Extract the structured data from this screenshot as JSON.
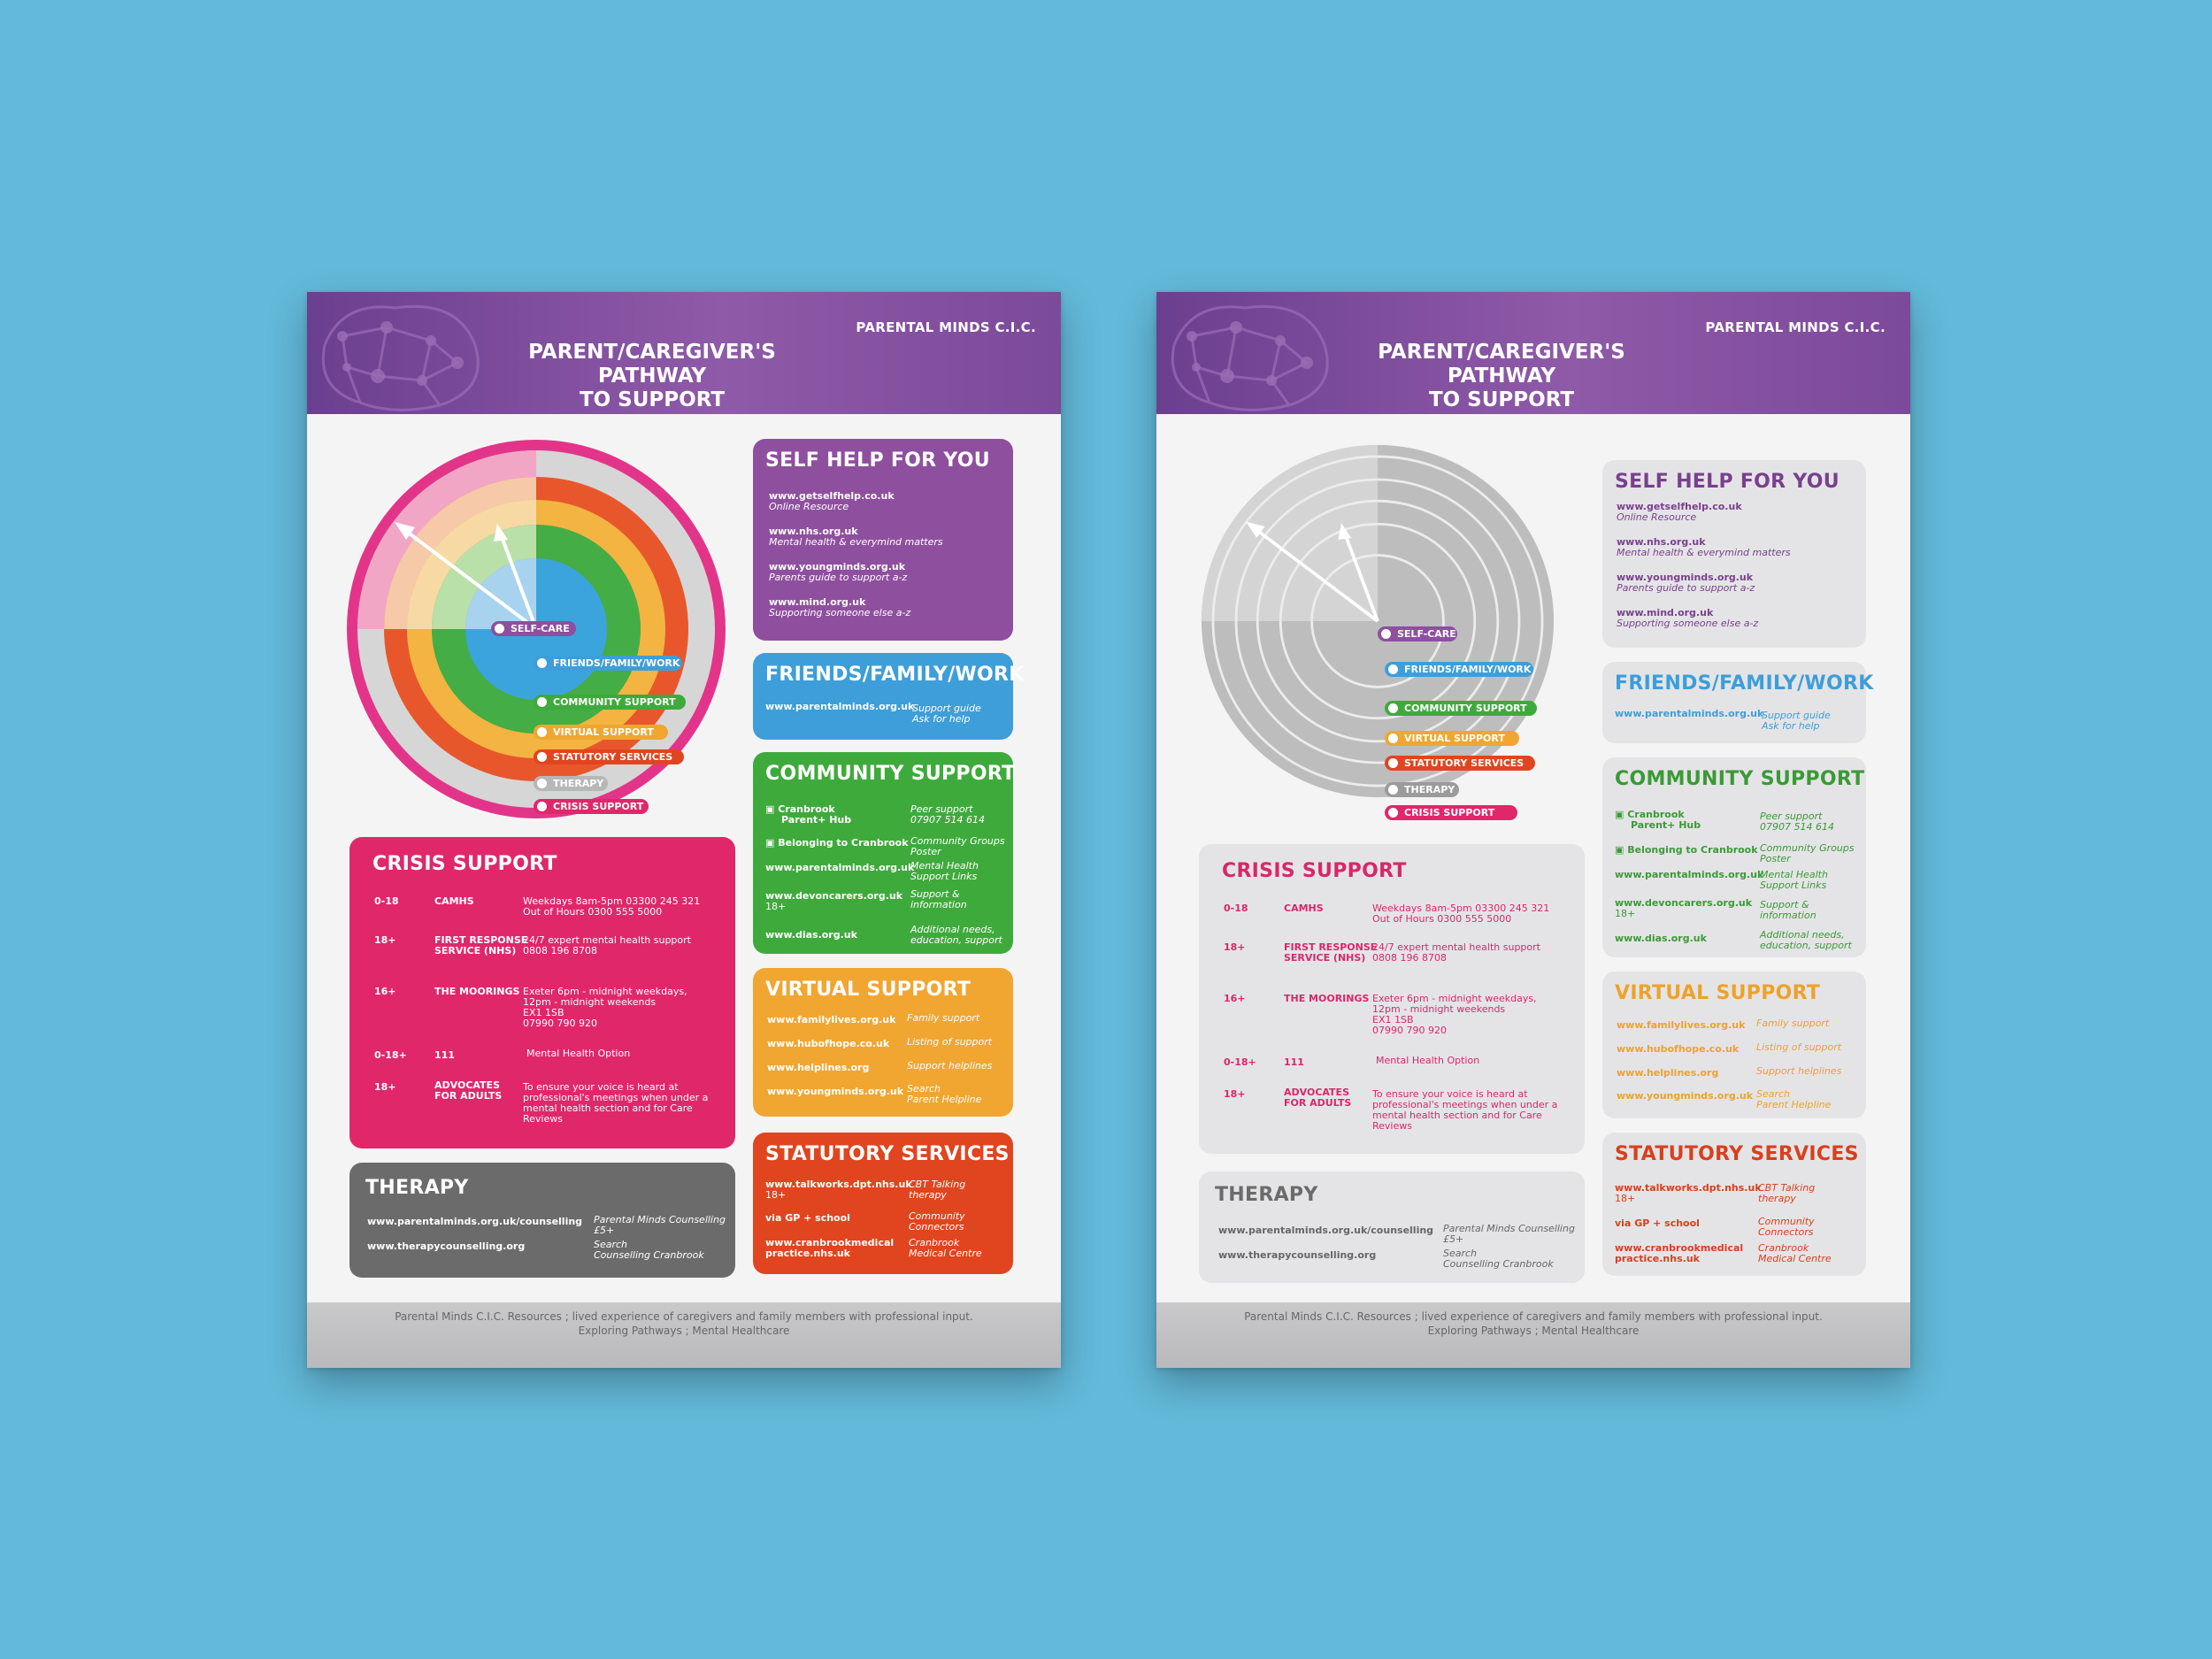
{
  "header": {
    "org": "PARENTAL MINDS C.I.C.",
    "title_line1": "PARENT/CAREGIVER'S PATHWAY",
    "title_line2": "TO SUPPORT"
  },
  "wheel_labels": [
    "SELF-CARE",
    "FRIENDS/FAMILY/WORK",
    "COMMUNITY SUPPORT",
    "VIRTUAL SUPPORT",
    "STATUTORY SERVICES",
    "THERAPY",
    "CRISIS SUPPORT"
  ],
  "self_help": {
    "title": "SELF HELP FOR YOU",
    "items": [
      {
        "url": "www.getselfhelp.co.uk",
        "desc": "Online Resource"
      },
      {
        "url": "www.nhs.org.uk",
        "desc": "Mental health & everymind matters"
      },
      {
        "url": "www.youngminds.org.uk",
        "desc": "Parents guide to support a-z"
      },
      {
        "url": "www.mind.org.uk",
        "desc": "Supporting someone else a-z"
      }
    ]
  },
  "friends": {
    "title": "FRIENDS/FAMILY/WORK",
    "url": "www.parentalminds.org.uk",
    "desc1": "Support guide",
    "desc2": "Ask for help"
  },
  "community": {
    "title": "COMMUNITY SUPPORT",
    "items": [
      {
        "n1": "Cranbrook",
        "n2": "Parent+ Hub",
        "d1": "Peer support",
        "d2": "07907 514 614"
      },
      {
        "n1": "Belonging to Cranbrook",
        "n2": "",
        "d1": "Community Groups",
        "d2": "Poster"
      },
      {
        "n1": "www.parentalminds.org.uk",
        "n2": "",
        "d1": "Mental Health",
        "d2": "Support Links"
      },
      {
        "n1": "www.devoncarers.org.uk",
        "n2": "18+",
        "d1": "Support &",
        "d2": "information"
      },
      {
        "n1": "www.dias.org.uk",
        "n2": "",
        "d1": "Additional needs,",
        "d2": "education, support"
      }
    ]
  },
  "virtual": {
    "title": "VIRTUAL SUPPORT",
    "items": [
      {
        "url": "www.familylives.org.uk",
        "d1": "Family support",
        "d2": ""
      },
      {
        "url": "www.hubofhope.co.uk",
        "d1": "Listing of support",
        "d2": ""
      },
      {
        "url": "www.helplines.org",
        "d1": "Support helplines",
        "d2": ""
      },
      {
        "url": "www.youngminds.org.uk",
        "d1": "Search",
        "d2": "Parent Helpline"
      }
    ]
  },
  "statutory": {
    "title": "STATUTORY SERVICES",
    "items": [
      {
        "n1": "www.talkworks.dpt.nhs.uk",
        "n2": "18+",
        "d1": "CBT Talking",
        "d2": "therapy"
      },
      {
        "n1": "via GP + school",
        "n2": "",
        "d1": "Community",
        "d2": "Connectors"
      },
      {
        "n1": "www.cranbrookmedical",
        "n2": "practice.nhs.uk",
        "d1": "Cranbrook",
        "d2": "Medical Centre"
      }
    ]
  },
  "crisis": {
    "title": "CRISIS SUPPORT",
    "rows": [
      {
        "age": "0-18",
        "name1": "CAMHS",
        "name2": "",
        "lines": [
          "Weekdays 8am-5pm  03300 245 321",
          "Out of Hours 0300 555 5000"
        ]
      },
      {
        "age": "18+",
        "name1": "FIRST RESPONSE",
        "name2": "SERVICE (NHS)",
        "lines": [
          "24/7 expert mental health support",
          "0808 196 8708"
        ]
      },
      {
        "age": "16+",
        "name1": "THE MOORINGS",
        "name2": "",
        "lines": [
          "Exeter 6pm - midnight weekdays,",
          "12pm - midnight weekends",
          "EX1 1SB",
          "07990 790 920"
        ]
      },
      {
        "age": "0-18+",
        "name1": "111",
        "name2": "",
        "lines": [
          "Mental Health Option"
        ]
      },
      {
        "age": "18+",
        "name1": "ADVOCATES",
        "name2": "FOR ADULTS",
        "lines": [
          "To ensure your voice is heard at",
          "professional's meetings when under a",
          "mental health section and for Care",
          "Reviews"
        ]
      }
    ]
  },
  "therapy": {
    "title": "THERAPY",
    "items": [
      {
        "url": "www.parentalminds.org.uk/counselling",
        "d1": "Parental Minds Counselling",
        "d2": "£5+"
      },
      {
        "url": "www.therapycounselling.org",
        "d1": "Search",
        "d2": "Counselling Cranbrook"
      }
    ]
  },
  "footer": {
    "line1": "Parental Minds C.I.C. Resources ; lived experience of caregivers and family members with professional input.",
    "line2": "Exploring Pathways ; Mental Healthcare"
  },
  "colors": {
    "background": "#62b9d9",
    "header": "#7b4a99",
    "self_care": "#8f4f9f",
    "friends": "#3d9ed9",
    "community": "#3faa3c",
    "virtual": "#f0a631",
    "statutory": "#e0451f",
    "therapy": "#6b6b6b",
    "crisis": "#e0276a"
  }
}
